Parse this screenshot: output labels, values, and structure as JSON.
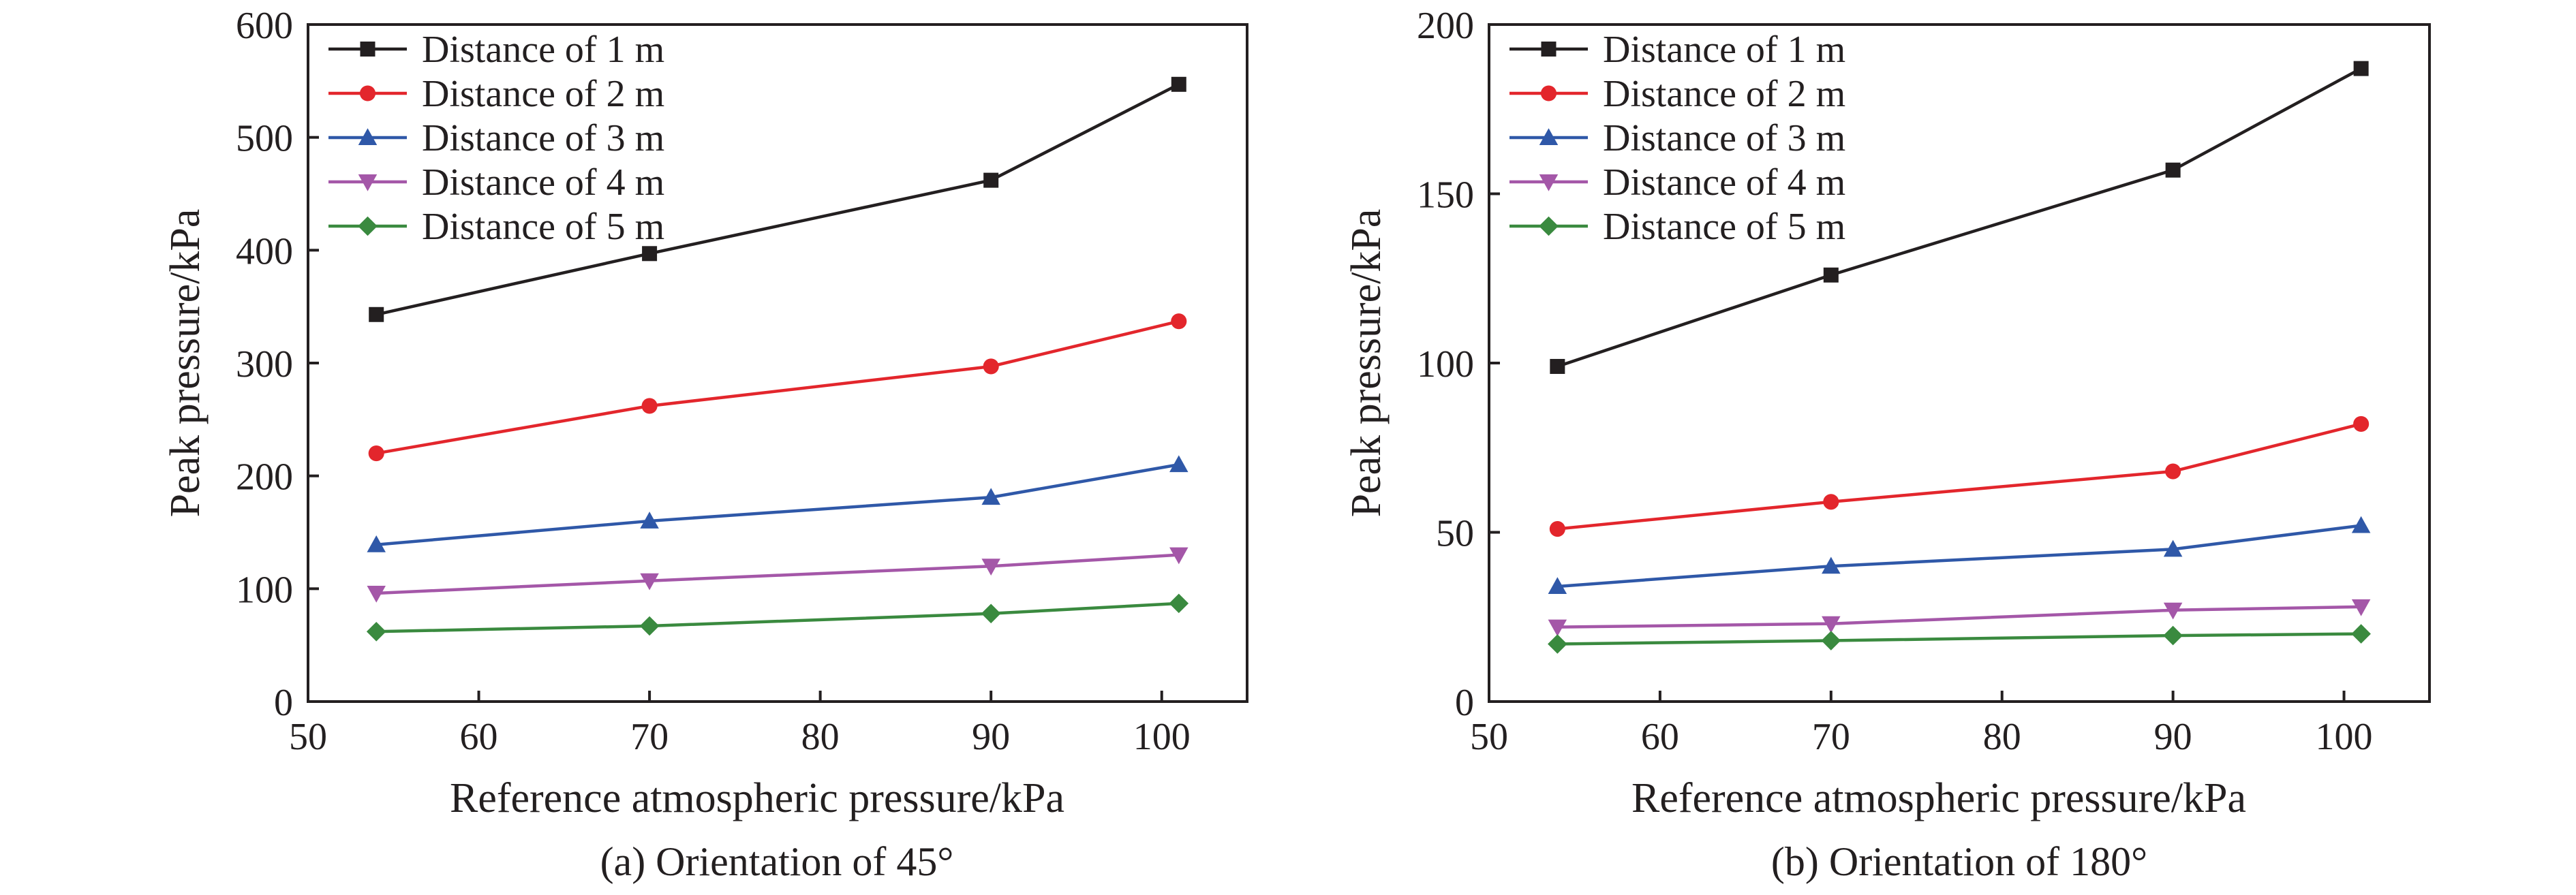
{
  "chart_data": [
    {
      "type": "line",
      "title": "",
      "caption": "(a) Orientation of 45°",
      "xlabel": "Reference atmospheric pressure/kPa",
      "ylabel": "Peak pressure/kPa",
      "xlim": [
        50,
        105
      ],
      "ylim": [
        0,
        600
      ],
      "xticks": [
        50,
        60,
        70,
        80,
        90,
        100
      ],
      "yticks": [
        0,
        100,
        200,
        300,
        400,
        500,
        600
      ],
      "x": [
        54,
        70,
        90,
        101
      ],
      "legend_position": "top-left",
      "grid": false,
      "series": [
        {
          "name": "Distance of 1 m",
          "color": "#231f20",
          "marker": "square",
          "values": [
            343,
            397,
            462,
            547
          ]
        },
        {
          "name": "Distance of 2 m",
          "color": "#e3262c",
          "marker": "circle",
          "values": [
            220,
            262,
            297,
            337
          ]
        },
        {
          "name": "Distance of 3 m",
          "color": "#2f58a8",
          "marker": "triangle-up",
          "values": [
            139,
            160,
            181,
            210
          ]
        },
        {
          "name": "Distance of 4 m",
          "color": "#a457a8",
          "marker": "triangle-down",
          "values": [
            96,
            107,
            120,
            130
          ]
        },
        {
          "name": "Distance of 5 m",
          "color": "#3a8a3f",
          "marker": "diamond",
          "values": [
            62,
            67,
            78,
            87
          ]
        }
      ]
    },
    {
      "type": "line",
      "title": "",
      "caption": "(b) Orientation of 180°",
      "xlabel": "Reference atmospheric pressure/kPa",
      "ylabel": "Peak pressure/kPa",
      "xlim": [
        50,
        105
      ],
      "ylim": [
        0,
        200
      ],
      "xticks": [
        50,
        60,
        70,
        80,
        90,
        100
      ],
      "yticks": [
        0,
        50,
        100,
        150,
        200
      ],
      "x": [
        54,
        70,
        90,
        101
      ],
      "legend_position": "top-left",
      "grid": false,
      "series": [
        {
          "name": "Distance of 1 m",
          "color": "#231f20",
          "marker": "square",
          "values": [
            99,
            126,
            157,
            187
          ]
        },
        {
          "name": "Distance of 2 m",
          "color": "#e3262c",
          "marker": "circle",
          "values": [
            51,
            59,
            68,
            82
          ]
        },
        {
          "name": "Distance of 3 m",
          "color": "#2f58a8",
          "marker": "triangle-up",
          "values": [
            34,
            40,
            45,
            52
          ]
        },
        {
          "name": "Distance of 4 m",
          "color": "#a457a8",
          "marker": "triangle-down",
          "values": [
            22,
            23,
            27,
            28
          ]
        },
        {
          "name": "Distance of 5 m",
          "color": "#3a8a3f",
          "marker": "diamond",
          "values": [
            17,
            18,
            19.5,
            20
          ]
        }
      ]
    }
  ]
}
